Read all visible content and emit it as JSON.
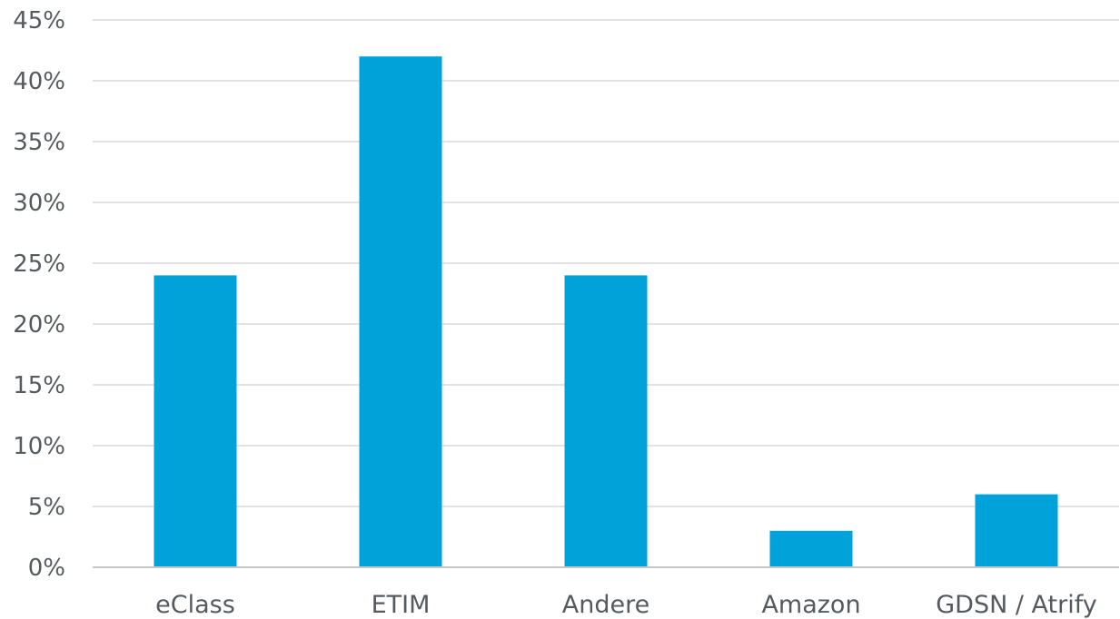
{
  "chart_data": {
    "type": "bar",
    "categories": [
      "eClass",
      "ETIM",
      "Andere",
      "Amazon",
      "GDSN / Atrify"
    ],
    "values": [
      24,
      42,
      24,
      3,
      6
    ],
    "y_ticks": [
      "0%",
      "5%",
      "10%",
      "15%",
      "20%",
      "25%",
      "30%",
      "35%",
      "40%",
      "45%"
    ],
    "ylim": [
      0,
      45
    ],
    "y_unit": "%",
    "grid": true,
    "legend": "none",
    "bar_color": "#00a3d9",
    "title": "",
    "xlabel": "",
    "ylabel": ""
  }
}
